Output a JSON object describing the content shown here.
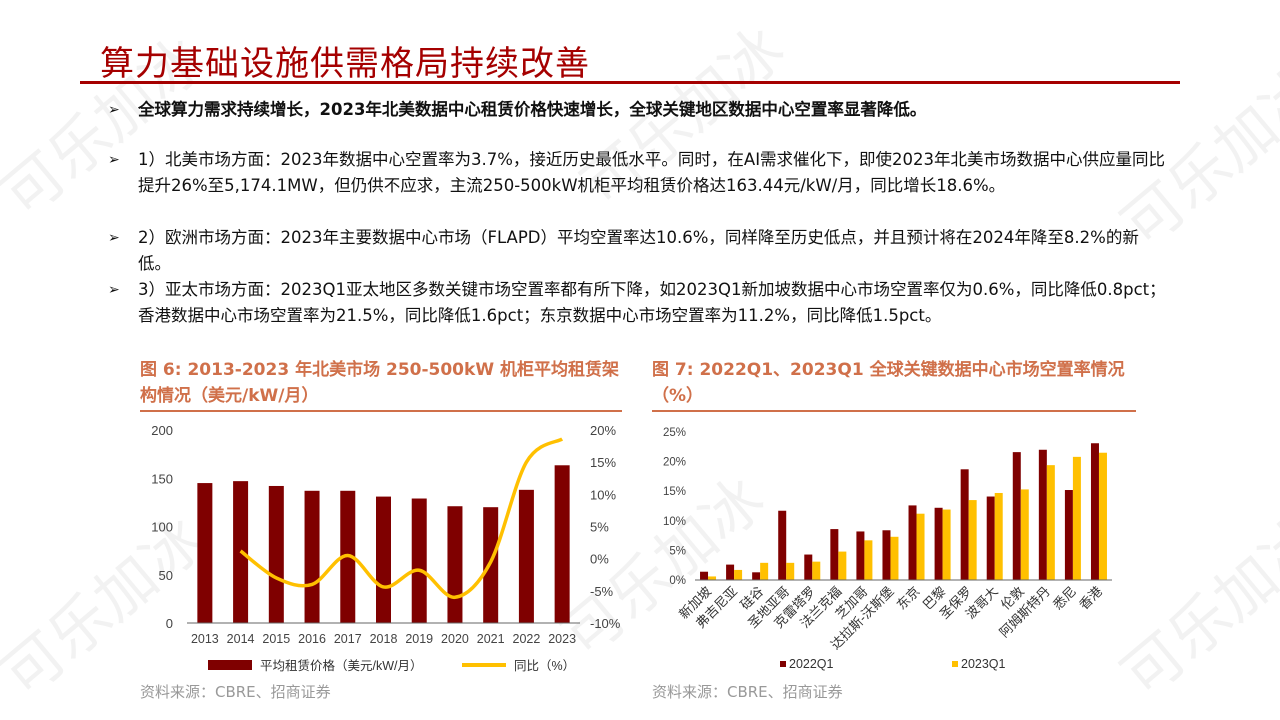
{
  "watermark": "可乐加冰",
  "header": {
    "title": "算力基础设施供需格局持续改善"
  },
  "bullets": [
    {
      "text": "全球算力需求持续增长，2023年北美数据中心租赁价格快速增长，全球关键地区数据中心空置率显著降低。"
    },
    {
      "text": "1）北美市场方面：2023年数据中心空置率为3.7%，接近历史最低水平。同时，在AI需求催化下，即使2023年北美市场数据中心供应量同比提升26%至5,174.1MW，但仍供不应求，主流250-500kW机柜平均租赁价格达163.44元/kW/月，同比增长18.6%。"
    },
    {
      "text": "2）欧洲市场方面：2023年主要数据中心市场（FLAPD）平均空置率达10.6%，同样降至历史低点，并且预计将在2024年降至8.2%的新低。"
    },
    {
      "text": "3）亚太市场方面：2023Q1亚太地区多数关键市场空置率都有所下降，如2023Q1新加坡数据中心市场空置率仅为0.6%，同比降低0.8pct；香港数据中心市场空置率为21.5%，同比降低1.6pct；东京数据中心市场空置率为11.2%，同比降低1.5pct。"
    }
  ],
  "figures": [
    {
      "title": "图 6: 2013-2023 年北美市场 250-500kW 机柜平均租赁架构情况（美元/kW/月）",
      "source": "资料来源：CBRE、招商证券"
    },
    {
      "title": "图 7: 2022Q1、2023Q1 全球关键数据中心市场空置率情况（%）",
      "source": "资料来源：CBRE、招商证券"
    }
  ],
  "colors": {
    "accent": "#a50000",
    "bar_dark": "#7f0000",
    "line_yellow": "#ffc000",
    "fig_title": "#d0704a"
  },
  "chart_data": [
    {
      "type": "bar+line",
      "categories": [
        "2013",
        "2014",
        "2015",
        "2016",
        "2017",
        "2018",
        "2019",
        "2020",
        "2021",
        "2022",
        "2023"
      ],
      "series": [
        {
          "name": "平均租赁价格（美元/kW/月）",
          "type": "bar",
          "axis": "left",
          "values": [
            145,
            147,
            142,
            137,
            137,
            131,
            129,
            121,
            120,
            138,
            163.44
          ]
        },
        {
          "name": "同比（%）",
          "type": "line",
          "axis": "right",
          "values": [
            null,
            1.2,
            -3.0,
            -4.0,
            0.5,
            -4.4,
            -1.8,
            -6.0,
            -0.5,
            15.0,
            18.6
          ]
        }
      ],
      "ylim": [
        0,
        200
      ],
      "yticks": [
        "0",
        "50",
        "100",
        "150",
        "200"
      ],
      "y2lim": [
        -10,
        20
      ],
      "y2ticks": [
        "-10%",
        "-5%",
        "0%",
        "5%",
        "10%",
        "15%",
        "20%"
      ],
      "legend": "bottom",
      "grid": false
    },
    {
      "type": "bar",
      "categories": [
        "新加坡",
        "弗吉尼亚",
        "硅谷",
        "圣地亚哥",
        "克雷塔罗",
        "法兰克福",
        "芝加哥",
        "达拉斯-沃斯堡",
        "东京",
        "巴黎",
        "圣保罗",
        "波哥大",
        "伦敦",
        "阿姆斯特丹",
        "悉尼",
        "香港"
      ],
      "series": [
        {
          "name": "2022Q1",
          "values": [
            1.4,
            2.6,
            1.3,
            11.7,
            4.3,
            8.6,
            8.2,
            8.4,
            12.6,
            12.2,
            18.7,
            14.1,
            21.6,
            22.0,
            15.2,
            23.1
          ]
        },
        {
          "name": "2023Q1",
          "values": [
            0.6,
            1.7,
            2.9,
            2.9,
            3.1,
            4.8,
            6.7,
            7.3,
            11.2,
            11.9,
            13.5,
            14.7,
            15.3,
            19.4,
            20.8,
            21.5
          ]
        }
      ],
      "ylim": [
        0,
        25
      ],
      "yticks": [
        "0%",
        "5%",
        "10%",
        "15%",
        "20%",
        "25%"
      ],
      "legend": "bottom",
      "grid": false
    }
  ]
}
